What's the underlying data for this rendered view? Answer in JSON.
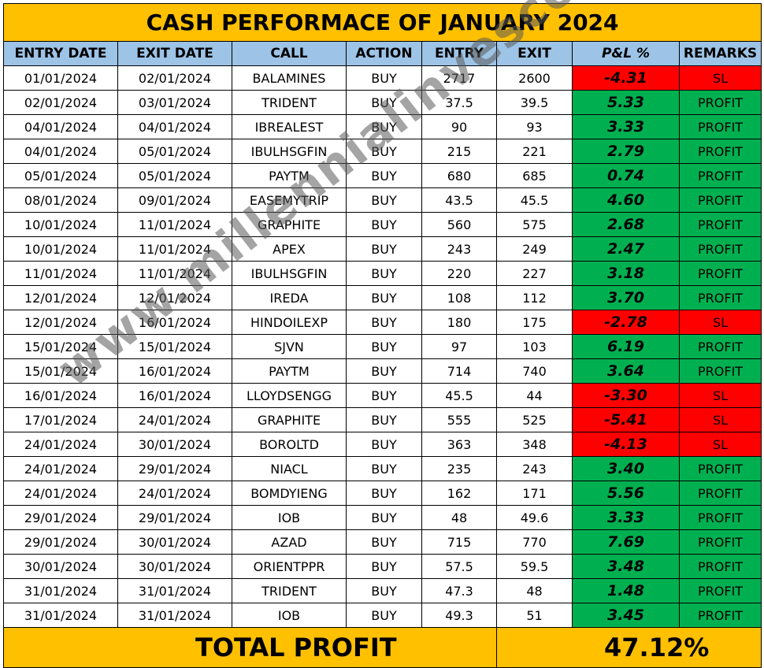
{
  "title": "CASH PERFORMACE OF JANUARY 2024",
  "headers": {
    "entry_date": "ENTRY DATE",
    "exit_date": "EXIT DATE",
    "call": "CALL",
    "action": "ACTION",
    "entry": "ENTRY",
    "exit": "EXIT",
    "pl": "P&L %",
    "remarks": "REMARKS"
  },
  "rows": [
    {
      "entry_date": "01/01/2024",
      "exit_date": "02/01/2024",
      "call": "BALAMINES",
      "action": "BUY",
      "entry": "2717",
      "exit": "2600",
      "pl": "-4.31",
      "remarks": "SL",
      "status": "loss"
    },
    {
      "entry_date": "02/01/2024",
      "exit_date": "03/01/2024",
      "call": "TRIDENT",
      "action": "BUY",
      "entry": "37.5",
      "exit": "39.5",
      "pl": "5.33",
      "remarks": "PROFIT",
      "status": "profit"
    },
    {
      "entry_date": "04/01/2024",
      "exit_date": "04/01/2024",
      "call": "IBREALEST",
      "action": "BUY",
      "entry": "90",
      "exit": "93",
      "pl": "3.33",
      "remarks": "PROFIT",
      "status": "profit"
    },
    {
      "entry_date": "04/01/2024",
      "exit_date": "05/01/2024",
      "call": "IBULHSGFIN",
      "action": "BUY",
      "entry": "215",
      "exit": "221",
      "pl": "2.79",
      "remarks": "PROFIT",
      "status": "profit"
    },
    {
      "entry_date": "05/01/2024",
      "exit_date": "05/01/2024",
      "call": "PAYTM",
      "action": "BUY",
      "entry": "680",
      "exit": "685",
      "pl": "0.74",
      "remarks": "PROFIT",
      "status": "profit"
    },
    {
      "entry_date": "08/01/2024",
      "exit_date": "09/01/2024",
      "call": "EASEMYTRIP",
      "action": "BUY",
      "entry": "43.5",
      "exit": "45.5",
      "pl": "4.60",
      "remarks": "PROFIT",
      "status": "profit"
    },
    {
      "entry_date": "10/01/2024",
      "exit_date": "11/01/2024",
      "call": "GRAPHITE",
      "action": "BUY",
      "entry": "560",
      "exit": "575",
      "pl": "2.68",
      "remarks": "PROFIT",
      "status": "profit"
    },
    {
      "entry_date": "10/01/2024",
      "exit_date": "11/01/2024",
      "call": "APEX",
      "action": "BUY",
      "entry": "243",
      "exit": "249",
      "pl": "2.47",
      "remarks": "PROFIT",
      "status": "profit"
    },
    {
      "entry_date": "11/01/2024",
      "exit_date": "11/01/2024",
      "call": "IBULHSGFIN",
      "action": "BUY",
      "entry": "220",
      "exit": "227",
      "pl": "3.18",
      "remarks": "PROFIT",
      "status": "profit"
    },
    {
      "entry_date": "12/01/2024",
      "exit_date": "12/01/2024",
      "call": "IREDA",
      "action": "BUY",
      "entry": "108",
      "exit": "112",
      "pl": "3.70",
      "remarks": "PROFIT",
      "status": "profit"
    },
    {
      "entry_date": "12/01/2024",
      "exit_date": "16/01/2024",
      "call": "HINDOILEXP",
      "action": "BUY",
      "entry": "180",
      "exit": "175",
      "pl": "-2.78",
      "remarks": "SL",
      "status": "loss"
    },
    {
      "entry_date": "15/01/2024",
      "exit_date": "15/01/2024",
      "call": "SJVN",
      "action": "BUY",
      "entry": "97",
      "exit": "103",
      "pl": "6.19",
      "remarks": "PROFIT",
      "status": "profit"
    },
    {
      "entry_date": "15/01/2024",
      "exit_date": "16/01/2024",
      "call": "PAYTM",
      "action": "BUY",
      "entry": "714",
      "exit": "740",
      "pl": "3.64",
      "remarks": "PROFIT",
      "status": "profit"
    },
    {
      "entry_date": "16/01/2024",
      "exit_date": "16/01/2024",
      "call": "LLOYDSENGG",
      "action": "BUY",
      "entry": "45.5",
      "exit": "44",
      "pl": "-3.30",
      "remarks": "SL",
      "status": "loss"
    },
    {
      "entry_date": "17/01/2024",
      "exit_date": "24/01/2024",
      "call": "GRAPHITE",
      "action": "BUY",
      "entry": "555",
      "exit": "525",
      "pl": "-5.41",
      "remarks": "SL",
      "status": "loss"
    },
    {
      "entry_date": "24/01/2024",
      "exit_date": "30/01/2024",
      "call": "BOROLTD",
      "action": "BUY",
      "entry": "363",
      "exit": "348",
      "pl": "-4.13",
      "remarks": "SL",
      "status": "loss"
    },
    {
      "entry_date": "24/01/2024",
      "exit_date": "29/01/2024",
      "call": "NIACL",
      "action": "BUY",
      "entry": "235",
      "exit": "243",
      "pl": "3.40",
      "remarks": "PROFIT",
      "status": "profit"
    },
    {
      "entry_date": "24/01/2024",
      "exit_date": "24/01/2024",
      "call": "BOMDYIENG",
      "action": "BUY",
      "entry": "162",
      "exit": "171",
      "pl": "5.56",
      "remarks": "PROFIT",
      "status": "profit"
    },
    {
      "entry_date": "29/01/2024",
      "exit_date": "29/01/2024",
      "call": "IOB",
      "action": "BUY",
      "entry": "48",
      "exit": "49.6",
      "pl": "3.33",
      "remarks": "PROFIT",
      "status": "profit"
    },
    {
      "entry_date": "29/01/2024",
      "exit_date": "30/01/2024",
      "call": "AZAD",
      "action": "BUY",
      "entry": "715",
      "exit": "770",
      "pl": "7.69",
      "remarks": "PROFIT",
      "status": "profit"
    },
    {
      "entry_date": "30/01/2024",
      "exit_date": "30/01/2024",
      "call": "ORIENTPPR",
      "action": "BUY",
      "entry": "57.5",
      "exit": "59.5",
      "pl": "3.48",
      "remarks": "PROFIT",
      "status": "profit"
    },
    {
      "entry_date": "31/01/2024",
      "exit_date": "31/01/2024",
      "call": "TRIDENT",
      "action": "BUY",
      "entry": "47.3",
      "exit": "48",
      "pl": "1.48",
      "remarks": "PROFIT",
      "status": "profit"
    },
    {
      "entry_date": "31/01/2024",
      "exit_date": "31/01/2024",
      "call": "IOB",
      "action": "BUY",
      "entry": "49.3",
      "exit": "51",
      "pl": "3.45",
      "remarks": "PROFIT",
      "status": "profit"
    }
  ],
  "total": {
    "label": "TOTAL PROFIT",
    "value": "47.12%"
  },
  "watermark": "www.millennialinvesco.in",
  "colors": {
    "title_bg": "#ffc000",
    "header_bg": "#9dc3e6",
    "profit": "#00b050",
    "loss": "#ff0000"
  }
}
